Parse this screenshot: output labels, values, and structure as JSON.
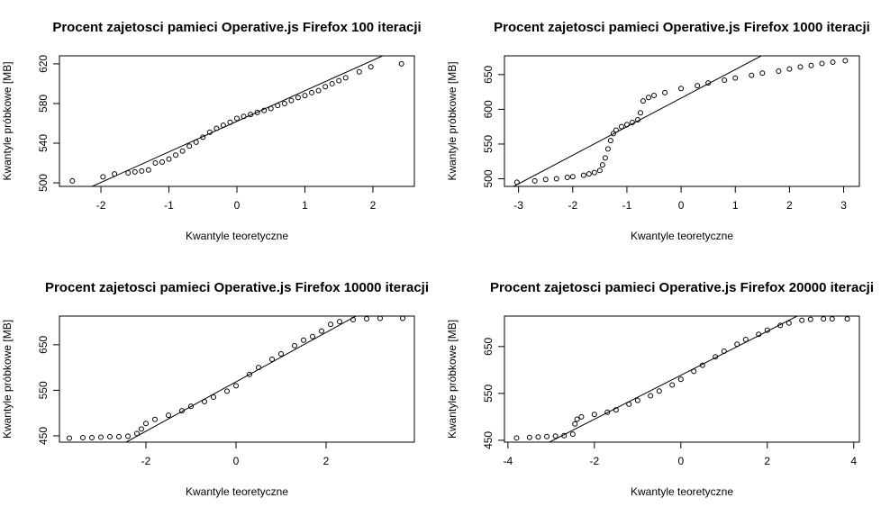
{
  "chart_data": [
    {
      "type": "scatter",
      "title": "Procent zajetosci pamieci Operative.js Firefox  100 iteracji",
      "xlabel": "Kwantyle teoretyczne",
      "ylabel": "Kwantyle próbkowe [MB]",
      "x": [
        -2.42,
        -1.97,
        -1.8,
        -1.6,
        -1.5,
        -1.4,
        -1.3,
        -1.2,
        -1.1,
        -1.0,
        -0.9,
        -0.8,
        -0.7,
        -0.6,
        -0.5,
        -0.4,
        -0.3,
        -0.2,
        -0.1,
        0.0,
        0.1,
        0.2,
        0.3,
        0.4,
        0.5,
        0.6,
        0.7,
        0.8,
        0.9,
        1.0,
        1.1,
        1.2,
        1.3,
        1.4,
        1.5,
        1.6,
        1.8,
        1.97,
        2.42
      ],
      "y": [
        502,
        506,
        509,
        510,
        511,
        512,
        513,
        520,
        521,
        524,
        528,
        532,
        537,
        541,
        546,
        551,
        555,
        558,
        561,
        565,
        567,
        569,
        571,
        573,
        575,
        578,
        580,
        583,
        586,
        588,
        591,
        593,
        597,
        600,
        603,
        606,
        612,
        617,
        620
      ],
      "reference_line": {
        "x": [
          -2.13,
          2.14
        ],
        "y": [
          496.4,
          628
        ]
      },
      "xlim": [
        -2.61,
        2.61
      ],
      "ylim": [
        496.4,
        628.1
      ],
      "xticks": [
        -2,
        -1,
        0,
        1,
        2
      ],
      "yticks": [
        500,
        540,
        580,
        620
      ],
      "color": "#000000"
    },
    {
      "type": "scatter",
      "title": "Procent zajetosci pamieci Operative.js Firefox  1000 iteracji",
      "xlabel": "Kwantyle teoretyczne",
      "ylabel": "Kwantyle próbkowe [MB]",
      "x": [
        -3.03,
        -2.7,
        -2.5,
        -2.3,
        -2.1,
        -2.0,
        -1.8,
        -1.7,
        -1.6,
        -1.5,
        -1.45,
        -1.4,
        -1.35,
        -1.3,
        -1.25,
        -1.2,
        -1.1,
        -1.0,
        -0.9,
        -0.8,
        -0.75,
        -0.7,
        -0.6,
        -0.5,
        -0.3,
        0.0,
        0.3,
        0.5,
        0.8,
        1.0,
        1.3,
        1.5,
        1.8,
        2.0,
        2.2,
        2.4,
        2.6,
        2.8,
        3.03
      ],
      "y": [
        495,
        497,
        499,
        500,
        502,
        503,
        505,
        507,
        509,
        512,
        520,
        530,
        543,
        555,
        565,
        570,
        575,
        578,
        581,
        585,
        595,
        612,
        617,
        620,
        624,
        630,
        634,
        638,
        642,
        645,
        649,
        652,
        655,
        658,
        661,
        663,
        666,
        668,
        670
      ],
      "reference_line": {
        "x": [
          -3.09,
          1.48
        ],
        "y": [
          489,
          677
        ]
      },
      "xlim": [
        -3.26,
        3.29
      ],
      "ylim": [
        489,
        677
      ],
      "xticks": [
        -3,
        -2,
        -1,
        0,
        1,
        2,
        3
      ],
      "yticks": [
        500,
        550,
        600,
        650
      ],
      "color": "#000000"
    },
    {
      "type": "scatter",
      "title": "Procent zajetosci pamieci Operative.js Firefox  10000 iteracji",
      "xlabel": "Kwantyle teoretyczne",
      "ylabel": "Kwantyle próbkowe [MB]",
      "x": [
        -3.7,
        -3.4,
        -3.2,
        -3.0,
        -2.8,
        -2.6,
        -2.4,
        -2.2,
        -2.1,
        -2.0,
        -1.8,
        -1.5,
        -1.2,
        -1.0,
        -0.7,
        -0.5,
        -0.2,
        0.0,
        0.3,
        0.5,
        0.8,
        1.0,
        1.3,
        1.5,
        1.7,
        1.9,
        2.1,
        2.3,
        2.6,
        2.9,
        3.2,
        3.7
      ],
      "y": [
        445,
        446,
        446,
        447,
        448,
        448,
        449,
        455,
        465,
        477,
        486,
        495,
        505,
        515,
        525,
        535,
        548,
        560,
        585,
        600,
        618,
        630,
        648,
        660,
        668,
        680,
        695,
        701,
        705,
        707,
        708,
        708
      ],
      "reference_line": {
        "x": [
          -2.44,
          2.66
        ],
        "y": [
          436,
          713
        ]
      },
      "xlim": [
        -3.92,
        3.96
      ],
      "ylim": [
        436,
        713
      ],
      "xticks": [
        -2,
        0,
        2
      ],
      "yticks": [
        450,
        550,
        650
      ],
      "color": "#000000"
    },
    {
      "type": "scatter",
      "title": "Procent zajetosci pamieci Operative.js Firefox  20000 iteracji",
      "xlabel": "Kwantyle teoretyczne",
      "ylabel": "Kwantyle próbkowe [MB]",
      "x": [
        -3.8,
        -3.5,
        -3.3,
        -3.1,
        -2.9,
        -2.7,
        -2.5,
        -2.45,
        -2.4,
        -2.3,
        -2.0,
        -1.7,
        -1.5,
        -1.2,
        -1.0,
        -0.7,
        -0.5,
        -0.2,
        0.0,
        0.3,
        0.5,
        0.8,
        1.0,
        1.3,
        1.5,
        1.8,
        2.0,
        2.3,
        2.5,
        2.8,
        3.0,
        3.3,
        3.5,
        3.85
      ],
      "y": [
        455,
        456,
        457,
        458,
        459,
        460,
        463,
        485,
        495,
        500,
        505,
        510,
        515,
        527,
        535,
        545,
        555,
        568,
        580,
        597,
        610,
        628,
        640,
        655,
        665,
        676,
        685,
        695,
        700,
        706,
        708,
        709,
        709,
        709
      ],
      "reference_line": {
        "x": [
          -3.04,
          2.69
        ],
        "y": [
          446,
          715
        ]
      },
      "xlim": [
        -4.08,
        4.13
      ],
      "ylim": [
        446,
        715
      ],
      "xticks": [
        -4,
        -2,
        0,
        2,
        4
      ],
      "yticks": [
        450,
        550,
        650
      ],
      "color": "#000000"
    }
  ]
}
